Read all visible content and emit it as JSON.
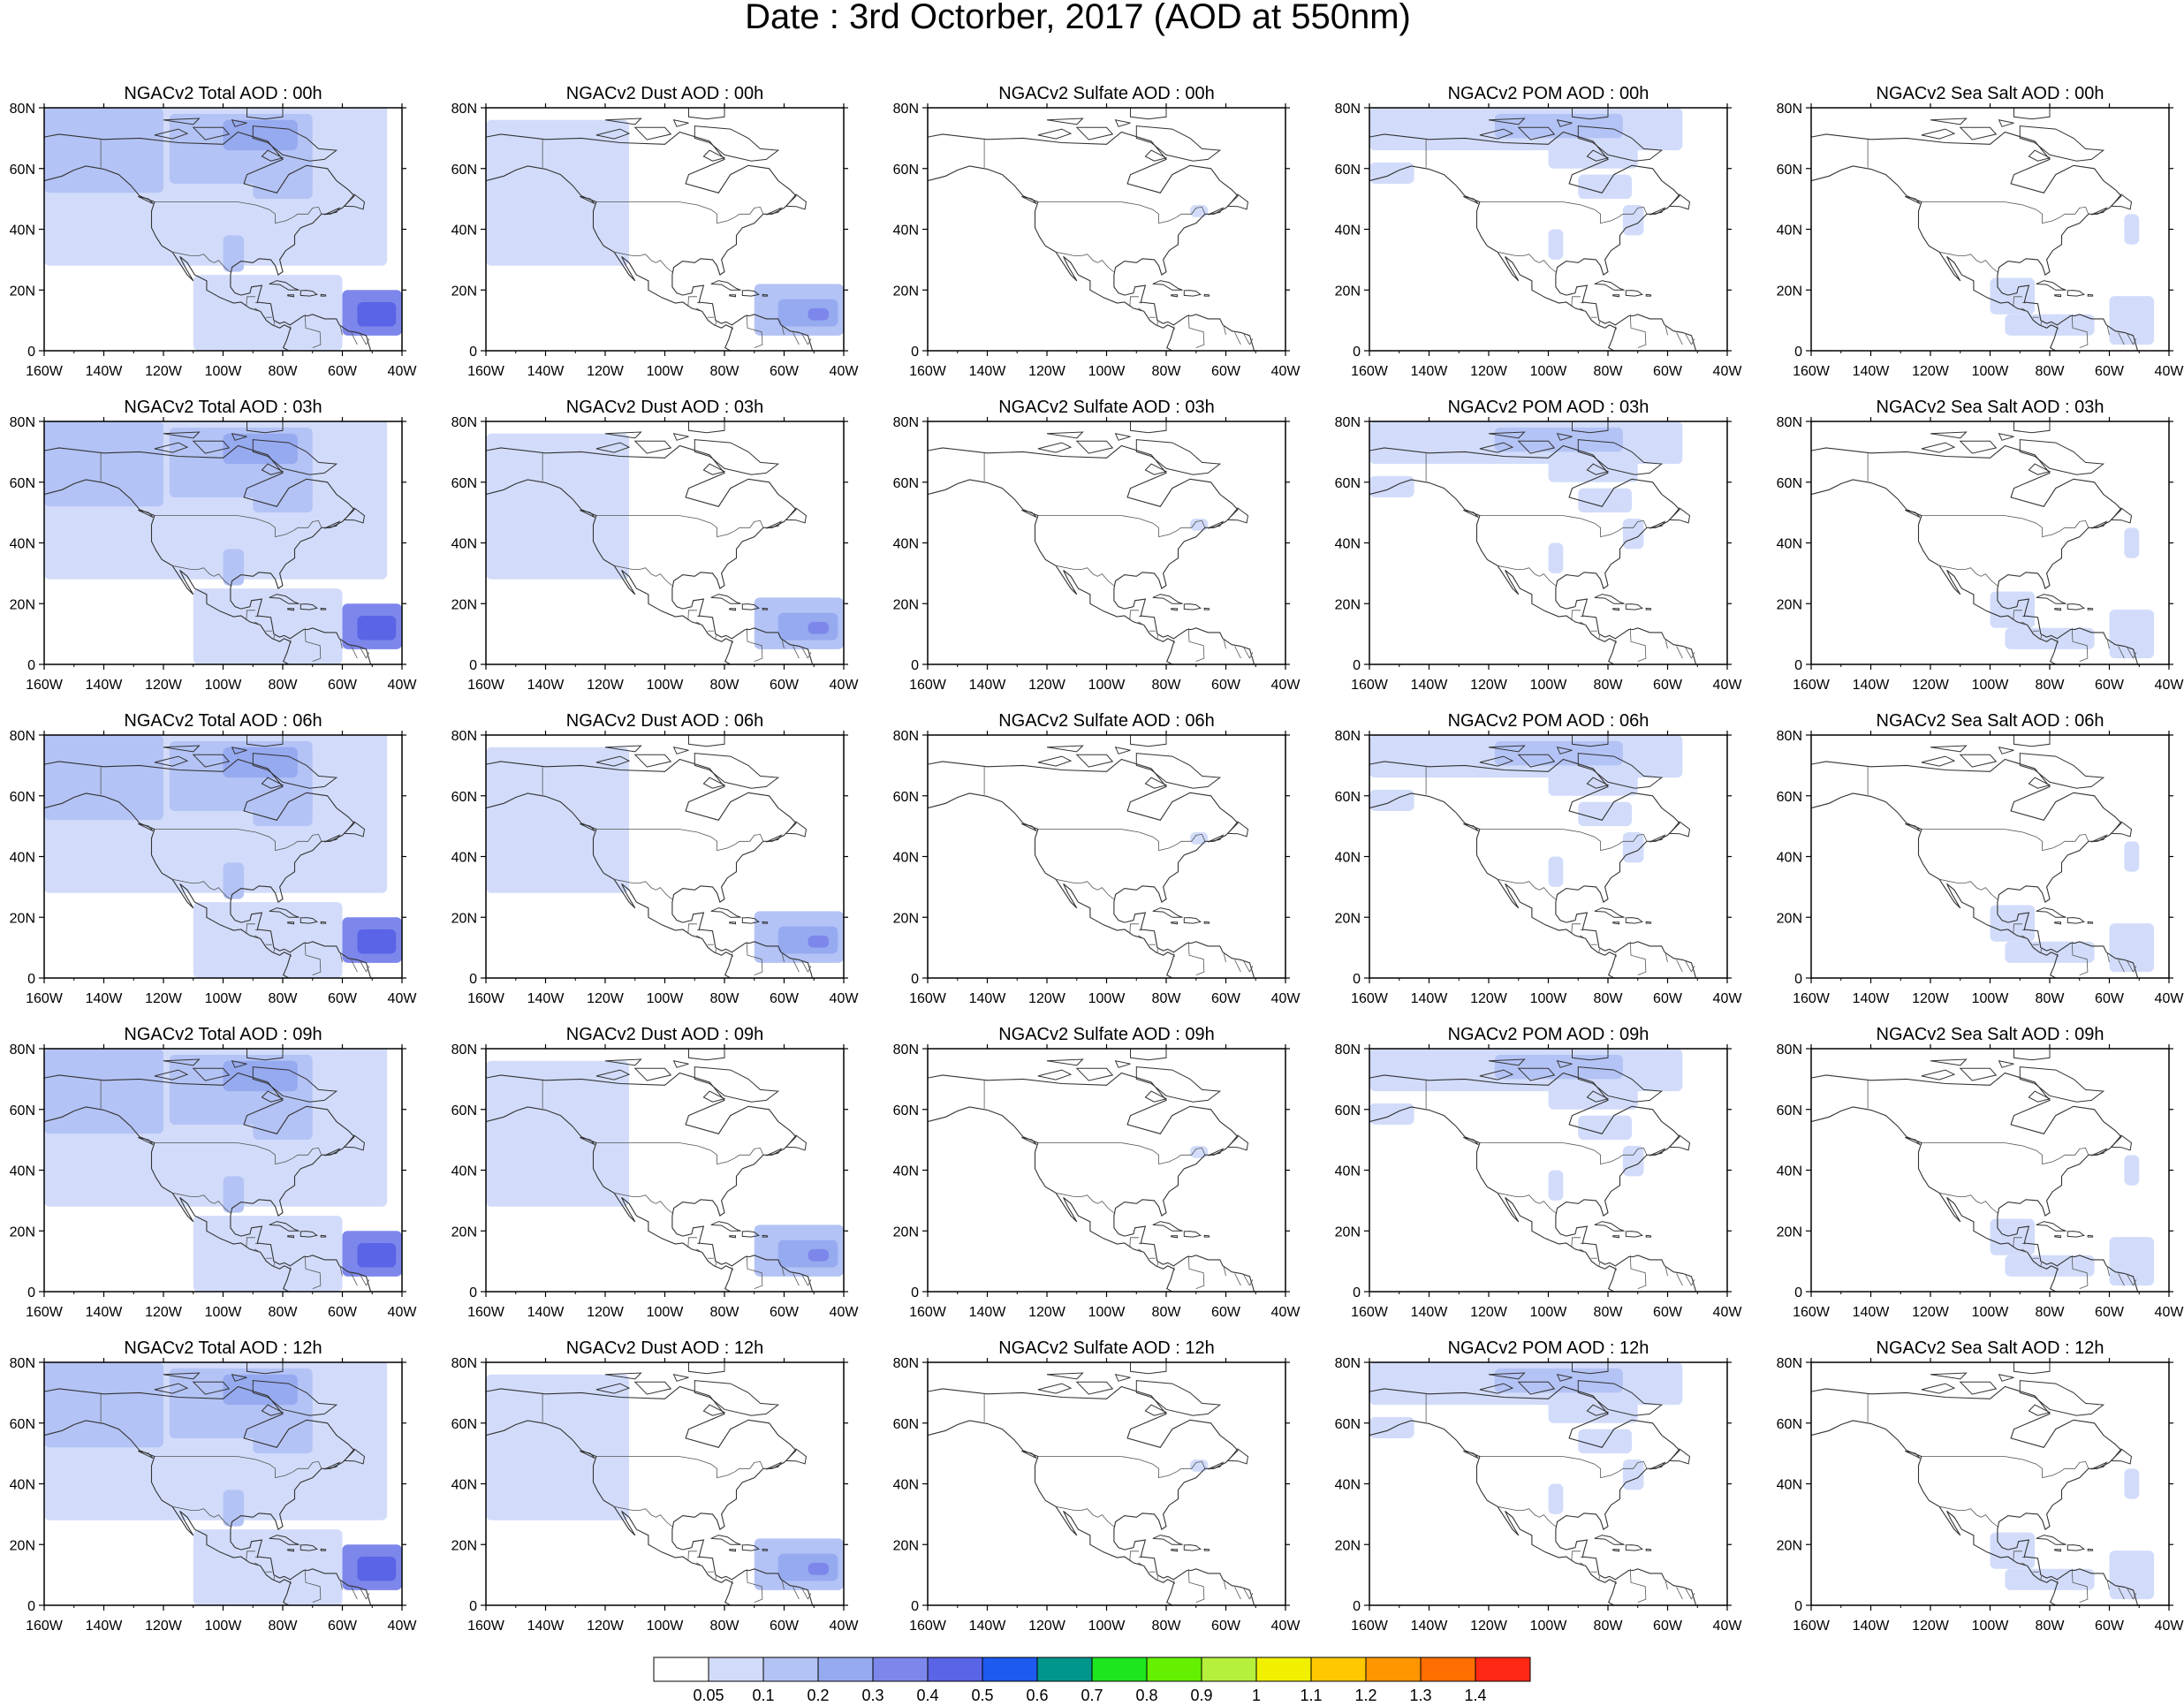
{
  "title": "Date : 3rd Octorber, 2017 (AOD at 550nm)",
  "lon_ticks": [
    "160W",
    "140W",
    "120W",
    "100W",
    "80W",
    "60W",
    "40W"
  ],
  "lat_ticks": [
    "80N",
    "60N",
    "40N",
    "20N",
    "0"
  ],
  "domain": {
    "lon_range": [
      -160,
      -40
    ],
    "lat_range": [
      0,
      80
    ]
  },
  "panels": [
    [
      "NGACv2 Total AOD : 00h",
      "NGACv2 Dust AOD : 00h",
      "NGACv2 Sulfate AOD : 00h",
      "NGACv2 POM AOD : 00h",
      "NGACv2 Sea Salt AOD : 00h"
    ],
    [
      "NGACv2 Total AOD : 03h",
      "NGACv2 Dust AOD : 03h",
      "NGACv2 Sulfate AOD : 03h",
      "NGACv2 POM AOD : 03h",
      "NGACv2 Sea Salt AOD : 03h"
    ],
    [
      "NGACv2 Total AOD : 06h",
      "NGACv2 Dust AOD : 06h",
      "NGACv2 Sulfate AOD : 06h",
      "NGACv2 POM AOD : 06h",
      "NGACv2 Sea Salt AOD : 06h"
    ],
    [
      "NGACv2 Total AOD : 09h",
      "NGACv2 Dust AOD : 09h",
      "NGACv2 Sulfate AOD : 09h",
      "NGACv2 POM AOD : 09h",
      "NGACv2 Sea Salt  AOD : 09h"
    ],
    [
      "NGACv2 Total AOD  : 12h",
      "NGACv2 Dust AOD : 12h",
      "NGACv2 Sulfate AOD : 12h",
      "NGACv2 POM  AOD : 12h",
      "NGACv2 Sea Salt  AOD : 12h"
    ]
  ],
  "colorbar": {
    "colors": [
      "#ffffff",
      "#d2dcfa",
      "#b4c3f5",
      "#96aaf0",
      "#7d87eb",
      "#5a64e6",
      "#1e5af0",
      "#00968c",
      "#1ee61e",
      "#64f000",
      "#b4f03c",
      "#f0f000",
      "#ffc800",
      "#ff9600",
      "#ff6e00",
      "#ff2814"
    ],
    "labels": [
      "0.05",
      "0.1",
      "0.2",
      "0.3",
      "0.4",
      "0.5",
      "0.6",
      "0.7",
      "0.8",
      "0.9",
      "1",
      "1.1",
      "1.2",
      "1.3",
      "1.4"
    ]
  },
  "species": [
    "total",
    "dust",
    "sulfate",
    "pom",
    "seasalt"
  ],
  "blobs": {
    "total": [
      [
        -160,
        28,
        -45,
        82,
        1
      ],
      [
        -160,
        52,
        -120,
        80,
        2
      ],
      [
        -118,
        55,
        -70,
        78,
        2
      ],
      [
        -100,
        66,
        -75,
        76,
        3
      ],
      [
        -90,
        50,
        -70,
        62,
        2
      ],
      [
        -100,
        26,
        -93,
        38,
        2
      ],
      [
        -60,
        5,
        -40,
        20,
        4
      ],
      [
        -55,
        8,
        -42,
        16,
        5
      ],
      [
        -110,
        0,
        -60,
        25,
        1
      ]
    ],
    "dust": [
      [
        -160,
        28,
        -112,
        76,
        1
      ],
      [
        -70,
        5,
        -40,
        22,
        2
      ],
      [
        -62,
        8,
        -42,
        17,
        3
      ],
      [
        -52,
        10,
        -45,
        14,
        4
      ]
    ],
    "sulfate": [
      [
        -72,
        44,
        -66,
        48,
        1
      ]
    ],
    "pom": [
      [
        -160,
        66,
        -55,
        80,
        1
      ],
      [
        -118,
        70,
        -75,
        78,
        2
      ],
      [
        -100,
        60,
        -70,
        70,
        1
      ],
      [
        -90,
        50,
        -72,
        58,
        1
      ],
      [
        -100,
        30,
        -95,
        40,
        1
      ],
      [
        -75,
        38,
        -68,
        48,
        1
      ],
      [
        -160,
        55,
        -145,
        62,
        1
      ]
    ],
    "seasalt": [
      [
        -100,
        12,
        -85,
        24,
        1
      ],
      [
        -60,
        2,
        -45,
        18,
        1
      ],
      [
        -95,
        5,
        -65,
        12,
        1
      ],
      [
        -55,
        35,
        -50,
        45,
        1
      ]
    ]
  }
}
